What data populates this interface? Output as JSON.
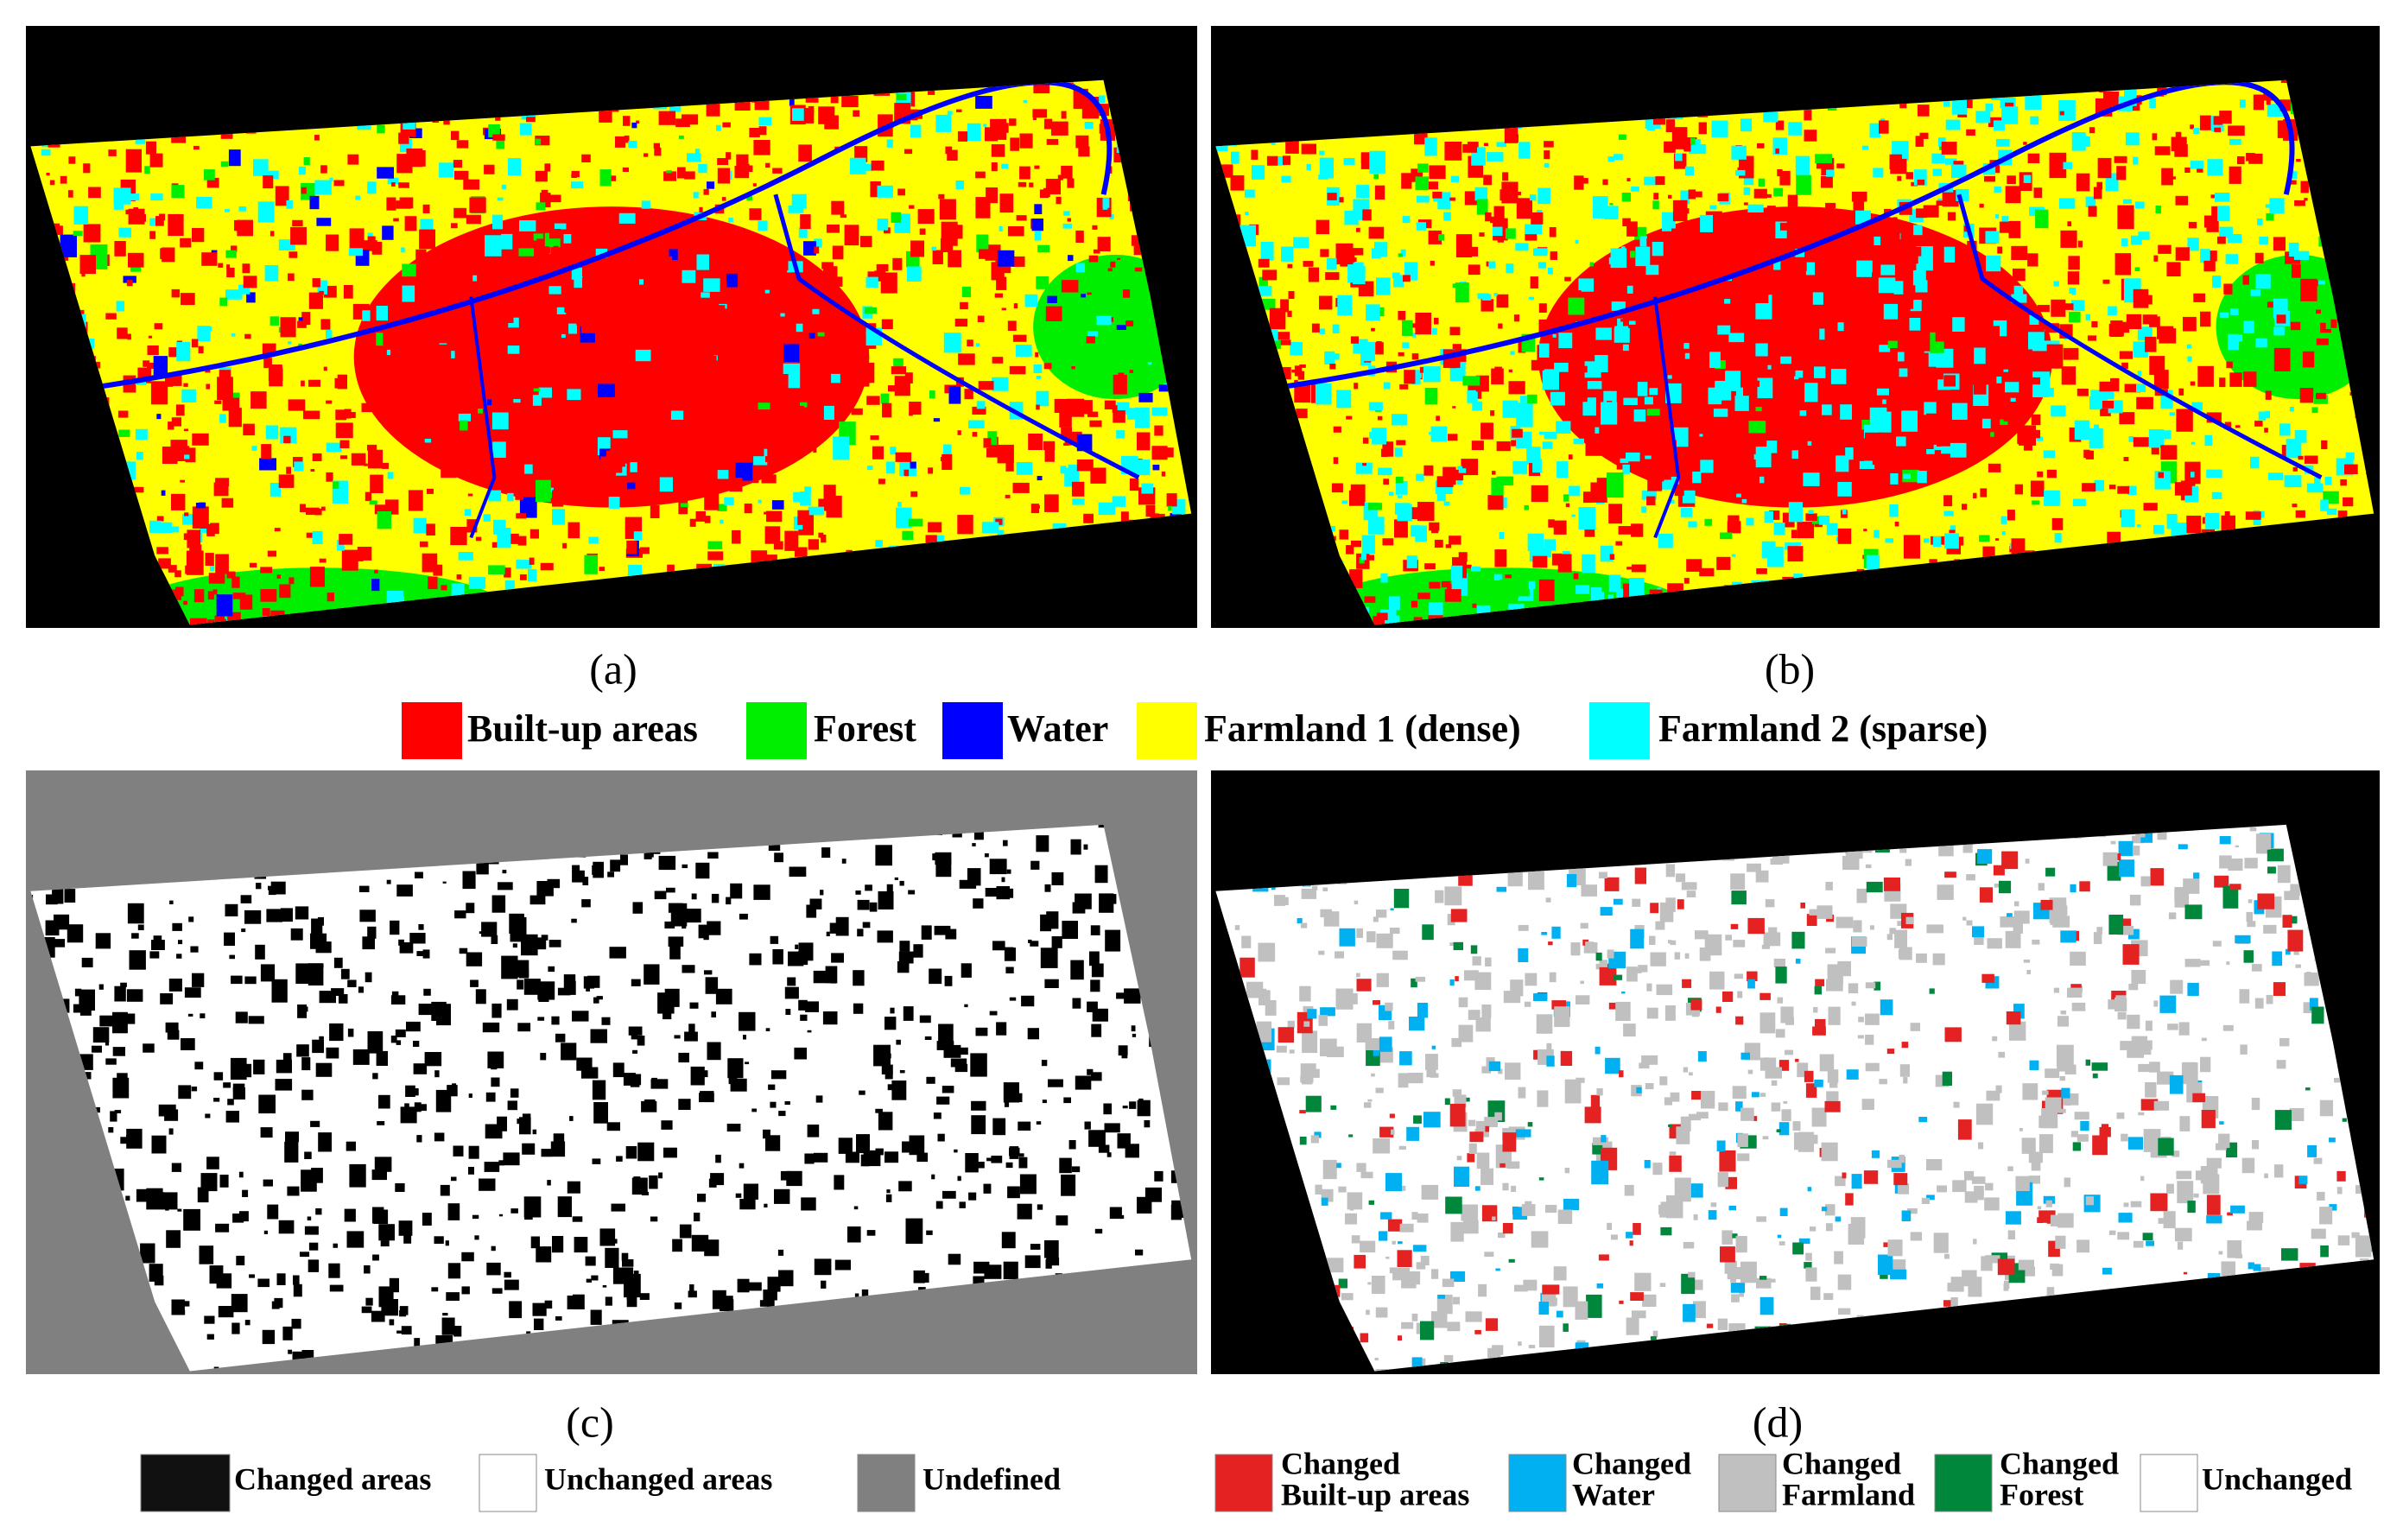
{
  "panels": [
    {
      "label": "(a)"
    },
    {
      "label": "(b)"
    },
    {
      "label": "(c)"
    },
    {
      "label": "(d)"
    }
  ],
  "legend_top": {
    "items": [
      {
        "label": "Built-up areas",
        "color": "#ff0000"
      },
      {
        "label": "Forest",
        "color": "#00ee00"
      },
      {
        "label": "Water",
        "color": "#0000ff"
      },
      {
        "label": "Farmland 1 (dense)",
        "color": "#ffff00"
      },
      {
        "label": "Farmland 2 (sparse)",
        "color": "#00ffff"
      }
    ]
  },
  "legend_c": {
    "items": [
      {
        "label": "Changed areas",
        "color": "#111111"
      },
      {
        "label": "Unchanged areas",
        "color": "#ffffff"
      },
      {
        "label": "Undefined",
        "color": "#808080"
      }
    ]
  },
  "legend_d": {
    "items": [
      {
        "label": [
          "Changed",
          "Built-up areas"
        ],
        "color": "#e52222"
      },
      {
        "label": [
          "Changed",
          "Water"
        ],
        "color": "#00b0f0"
      },
      {
        "label": [
          "Changed",
          "Farmland"
        ],
        "color": "#c0c0c0"
      },
      {
        "label": [
          "Changed",
          "Forest"
        ],
        "color": "#00873c"
      },
      {
        "label": [
          "Unchanged"
        ],
        "color": "#ffffff"
      }
    ]
  }
}
